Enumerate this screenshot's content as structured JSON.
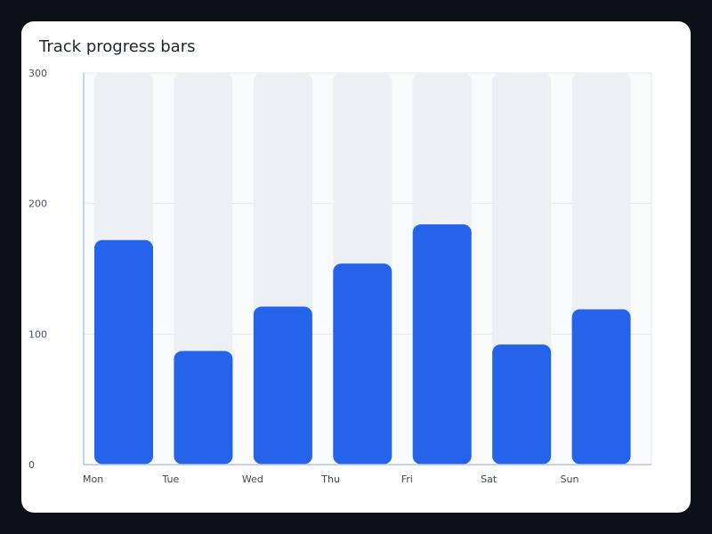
{
  "chart_data": {
    "type": "bar",
    "title": "Track progress bars",
    "xlabel": "",
    "ylabel": "",
    "categories": [
      "Mon",
      "Tue",
      "Wed",
      "Thu",
      "Fri",
      "Sat",
      "Sun"
    ],
    "values": [
      172,
      87,
      121,
      154,
      184,
      92,
      119
    ],
    "track_max": 300,
    "ylim": [
      0,
      300
    ],
    "yticks": [
      0,
      100,
      200,
      300
    ],
    "grid": true,
    "colors": {
      "bar": "#2563eb",
      "track": "#eceff3",
      "band": "#f8fafc",
      "grid": "#e5e9ef",
      "axis": "#b9c4d4"
    }
  }
}
